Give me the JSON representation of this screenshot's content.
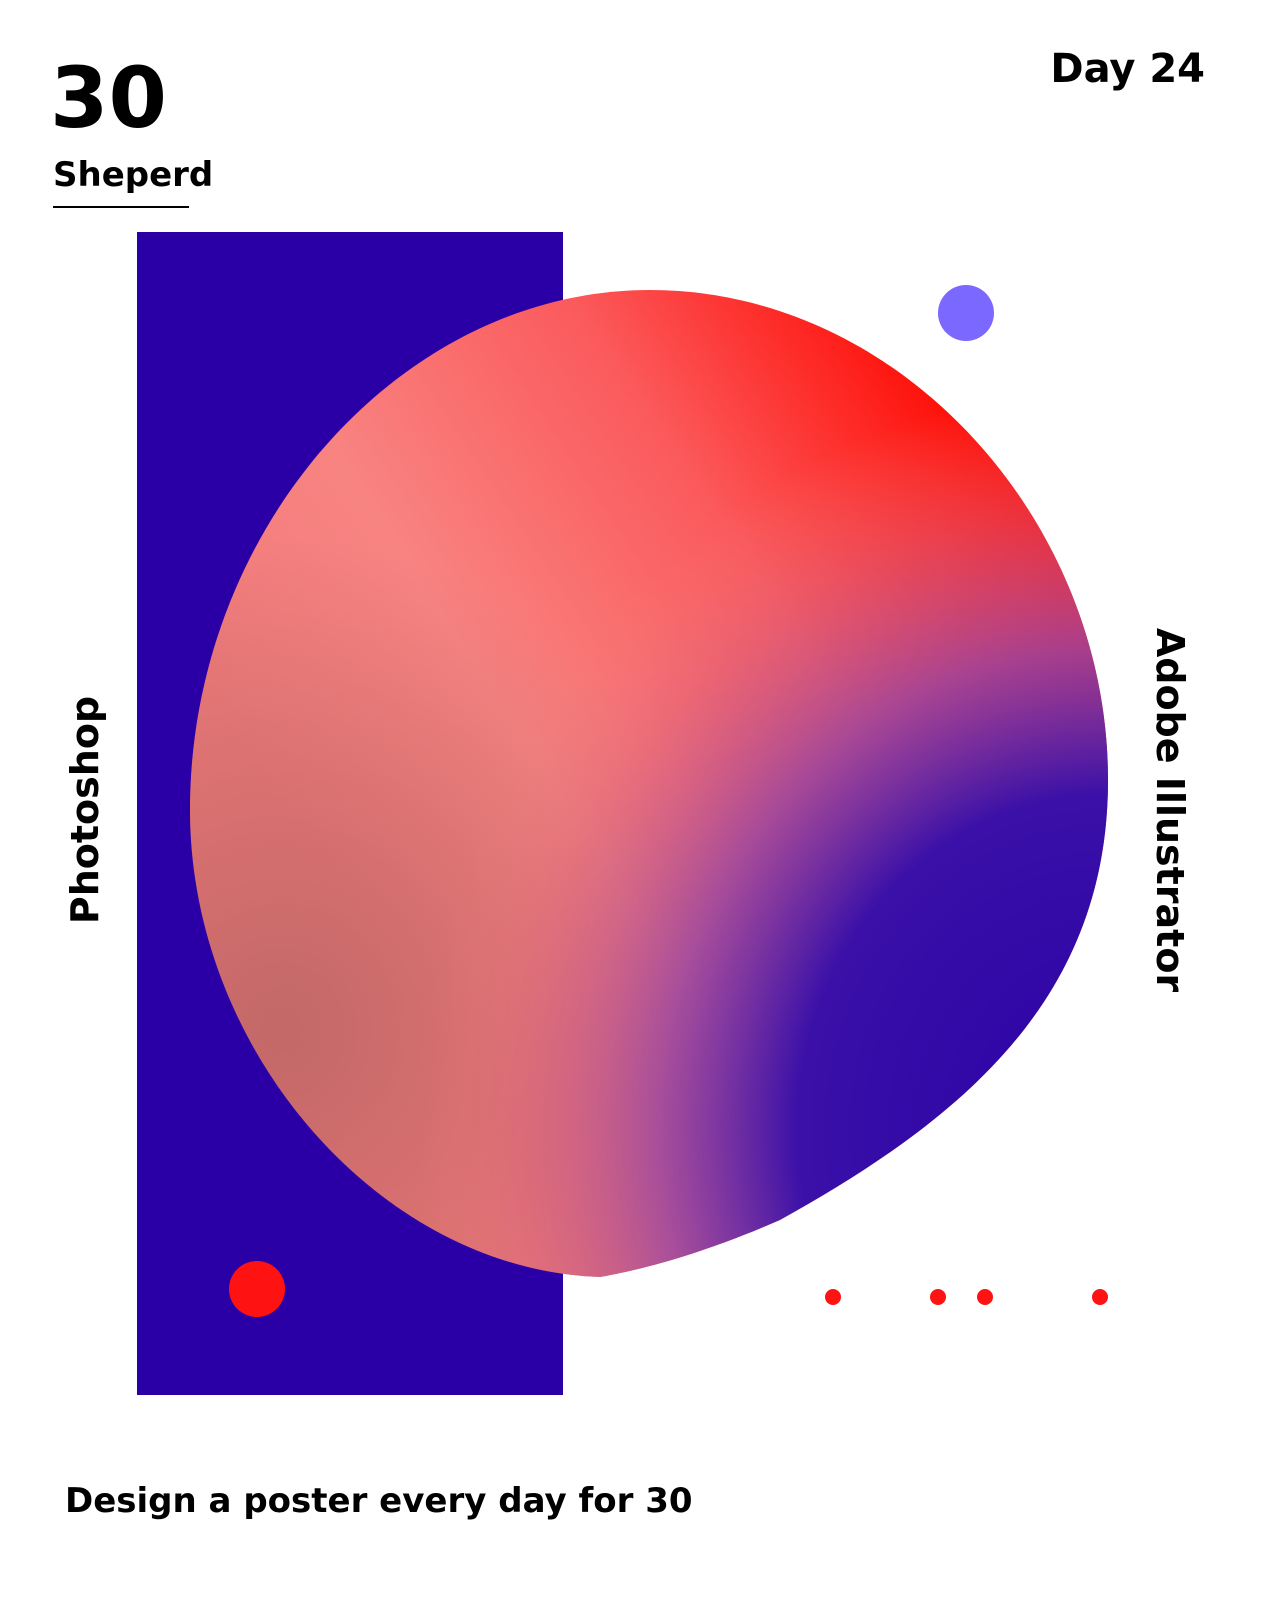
{
  "poster": {
    "number": "30",
    "author": "Sheperd",
    "day": "Day 24",
    "left_label": "Photoshop",
    "right_label": "Adobe Illustrator",
    "tagline": "Design a poster every day for 30"
  }
}
